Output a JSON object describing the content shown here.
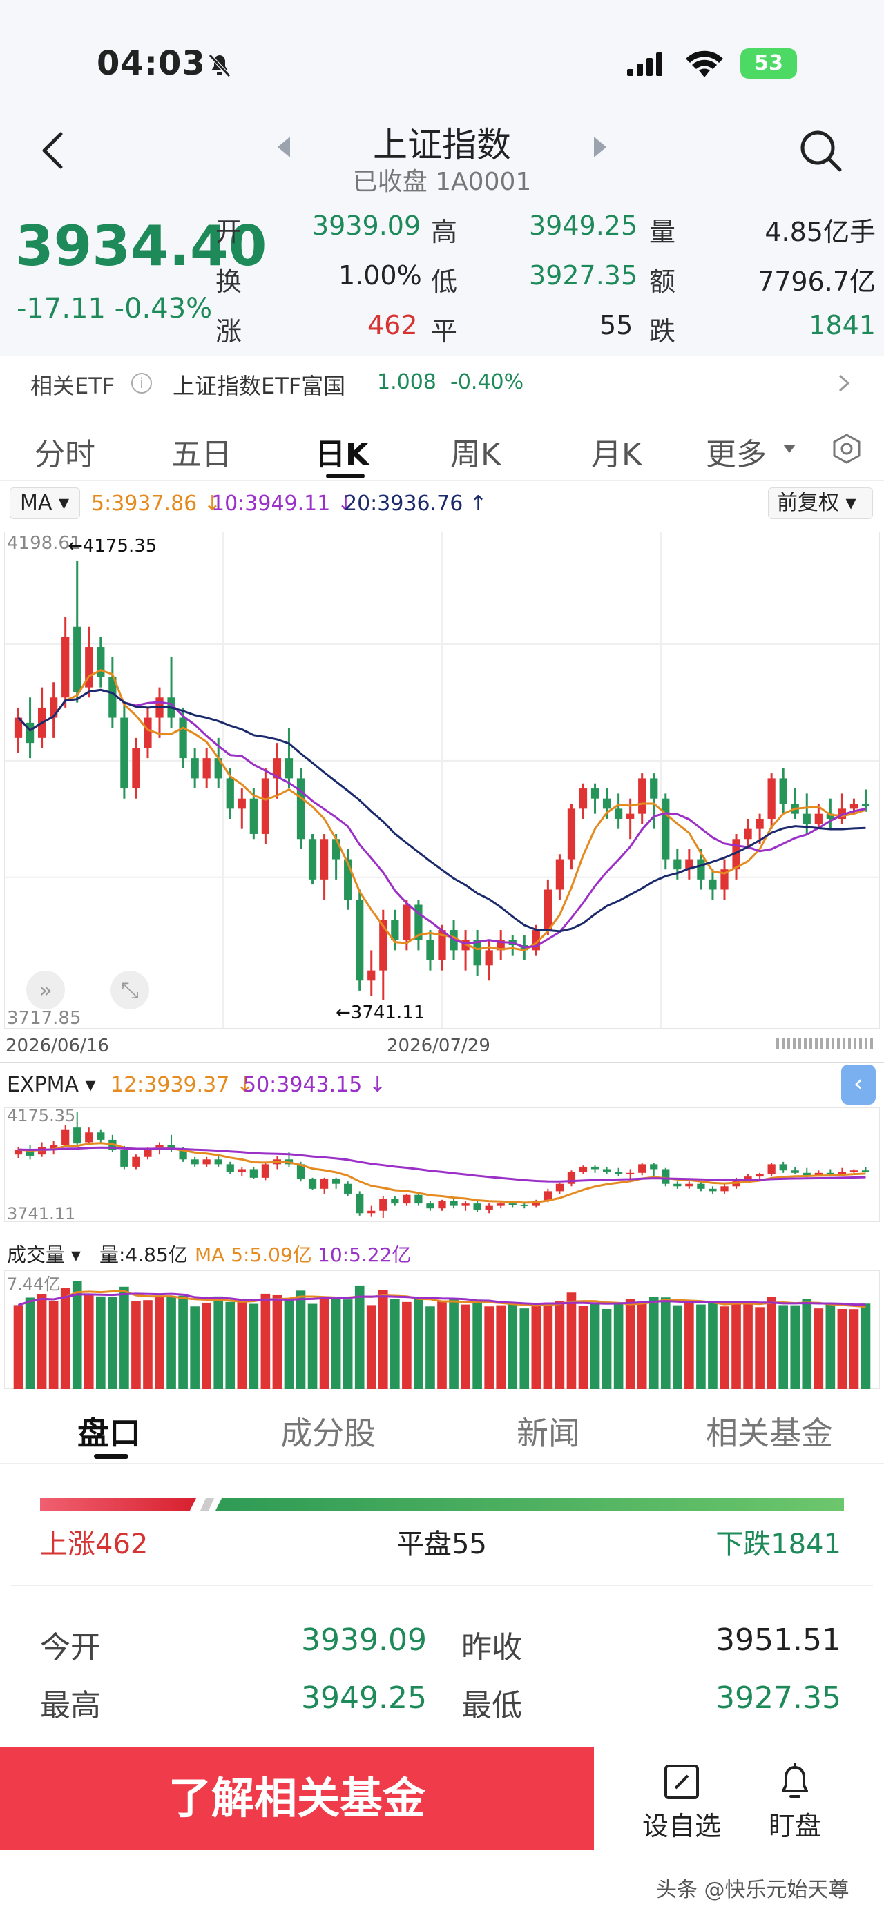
{
  "status_bar": {
    "time": "04:03",
    "battery": "53"
  },
  "header": {
    "title": "上证指数",
    "subtitle": "已收盘 1A0001"
  },
  "quote": {
    "price": "3934.40",
    "change": "-17.11",
    "change_pct": "-0.43%",
    "open_label": "开",
    "open": "3939.09",
    "high_label": "高",
    "high": "3949.25",
    "volume_label": "量",
    "volume": "4.85亿手",
    "turnover_label": "换",
    "turnover": "1.00%",
    "low_label": "低",
    "low": "3927.35",
    "amount_label": "额",
    "amount": "7796.7亿",
    "up_label": "涨",
    "up": "462",
    "flat_label": "平",
    "flat": "55",
    "down_label": "跌",
    "down": "1841"
  },
  "etf": {
    "label": "相关ETF",
    "name": "上证指数ETF富国",
    "price": "1.008",
    "pct": "-0.40%"
  },
  "tabs": [
    "分时",
    "五日",
    "日K",
    "周K",
    "月K",
    "更多"
  ],
  "ma": {
    "selector": "MA",
    "ma5": "5:3937.86",
    "ma10": "10:3949.11",
    "ma20": "20:3936.76",
    "adjust": "前复权"
  },
  "kchart": {
    "top_label": "4198.61",
    "high_mark": "4175.35",
    "low_mark": "3741.11",
    "bottom_label": "3717.85",
    "date_start": "2026/06/16",
    "date_mid": "2026/07/29"
  },
  "expma": {
    "selector": "EXPMA",
    "e12": "12:3939.37",
    "e50": "50:3943.15",
    "top_label": "4175.35",
    "bottom_label": "3741.11"
  },
  "vol": {
    "selector": "成交量",
    "volume": "量:4.85亿",
    "ma5": "MA 5:5.09亿",
    "ma10": "10:5.22亿",
    "top_label": "7.44亿"
  },
  "bottom_tabs": [
    "盘口",
    "成分股",
    "新闻",
    "相关基金"
  ],
  "breadth": {
    "up": "上涨462",
    "flat": "平盘55",
    "down": "下跌1841"
  },
  "stats": [
    {
      "label": "今开",
      "value": "3939.09",
      "label2": "昨收",
      "value2": "3951.51"
    },
    {
      "label": "最高",
      "value": "3949.25",
      "label2": "最低",
      "value2": "3927.35"
    }
  ],
  "cta": "了解相关基金",
  "actions": {
    "watchlist": "设自选",
    "monitor": "盯盘"
  },
  "watermark": "头条 @快乐元始天尊",
  "chart_data": {
    "type": "candlestick",
    "x_start": "2026/06/16",
    "x_mid": "2026/07/29",
    "ylim": [
      3717.85,
      4198.61
    ],
    "high_annotation": 4175.35,
    "low_annotation": 3741.11,
    "candles": [
      [
        4000,
        4020,
        3985,
        4030
      ],
      [
        4015,
        3995,
        3980,
        4040
      ],
      [
        4000,
        4030,
        3990,
        4050
      ],
      [
        4020,
        4040,
        4000,
        4055
      ],
      [
        4040,
        4100,
        4030,
        4120
      ],
      [
        4110,
        4045,
        4035,
        4175
      ],
      [
        4050,
        4090,
        4040,
        4110
      ],
      [
        4090,
        4060,
        4050,
        4100
      ],
      [
        4060,
        4020,
        4010,
        4080
      ],
      [
        4020,
        3950,
        3940,
        4035
      ],
      [
        3950,
        3990,
        3940,
        4000
      ],
      [
        3990,
        4020,
        3980,
        4030
      ],
      [
        4020,
        4040,
        4000,
        4050
      ],
      [
        4040,
        4020,
        4010,
        4080
      ],
      [
        4020,
        3980,
        3970,
        4030
      ],
      [
        3980,
        3960,
        3950,
        3990
      ],
      [
        3960,
        3980,
        3950,
        3990
      ],
      [
        3980,
        3960,
        3950,
        4000
      ],
      [
        3960,
        3930,
        3920,
        3970
      ],
      [
        3930,
        3940,
        3910,
        3950
      ],
      [
        3940,
        3905,
        3900,
        3950
      ],
      [
        3905,
        3960,
        3895,
        3970
      ],
      [
        3960,
        3980,
        3940,
        3995
      ],
      [
        3980,
        3960,
        3950,
        4010
      ],
      [
        3960,
        3900,
        3890,
        3970
      ],
      [
        3900,
        3860,
        3855,
        3905
      ],
      [
        3860,
        3900,
        3840,
        3905
      ],
      [
        3900,
        3880,
        3860,
        3905
      ],
      [
        3880,
        3840,
        3830,
        3890
      ],
      [
        3840,
        3760,
        3750,
        3850
      ],
      [
        3760,
        3770,
        3745,
        3790
      ],
      [
        3770,
        3820,
        3741,
        3830
      ],
      [
        3820,
        3800,
        3790,
        3830
      ],
      [
        3800,
        3835,
        3790,
        3840
      ],
      [
        3835,
        3800,
        3790,
        3840
      ],
      [
        3800,
        3780,
        3770,
        3810
      ],
      [
        3780,
        3810,
        3770,
        3815
      ],
      [
        3810,
        3790,
        3780,
        3820
      ],
      [
        3790,
        3800,
        3770,
        3810
      ],
      [
        3800,
        3775,
        3765,
        3810
      ],
      [
        3775,
        3790,
        3760,
        3800
      ],
      [
        3790,
        3800,
        3780,
        3810
      ],
      [
        3800,
        3795,
        3785,
        3805
      ],
      [
        3795,
        3790,
        3780,
        3805
      ],
      [
        3790,
        3810,
        3785,
        3815
      ],
      [
        3810,
        3850,
        3805,
        3860
      ],
      [
        3850,
        3880,
        3840,
        3885
      ],
      [
        3880,
        3930,
        3870,
        3935
      ],
      [
        3930,
        3950,
        3920,
        3955
      ],
      [
        3950,
        3940,
        3925,
        3955
      ],
      [
        3940,
        3930,
        3920,
        3950
      ],
      [
        3930,
        3920,
        3910,
        3945
      ],
      [
        3920,
        3925,
        3900,
        3940
      ],
      [
        3925,
        3960,
        3915,
        3965
      ],
      [
        3960,
        3940,
        3910,
        3965
      ],
      [
        3940,
        3880,
        3870,
        3945
      ],
      [
        3880,
        3870,
        3860,
        3890
      ],
      [
        3870,
        3880,
        3860,
        3890
      ],
      [
        3880,
        3860,
        3850,
        3890
      ],
      [
        3860,
        3850,
        3840,
        3870
      ],
      [
        3850,
        3870,
        3840,
        3880
      ],
      [
        3870,
        3900,
        3860,
        3905
      ],
      [
        3900,
        3910,
        3890,
        3920
      ],
      [
        3910,
        3920,
        3895,
        3925
      ],
      [
        3920,
        3960,
        3910,
        3965
      ],
      [
        3960,
        3935,
        3925,
        3970
      ],
      [
        3935,
        3925,
        3920,
        3950
      ],
      [
        3925,
        3915,
        3905,
        3945
      ],
      [
        3915,
        3925,
        3910,
        3935
      ],
      [
        3925,
        3920,
        3910,
        3940
      ],
      [
        3920,
        3930,
        3915,
        3945
      ],
      [
        3930,
        3935,
        3925,
        3940
      ],
      [
        3935,
        3934,
        3927,
        3949
      ]
    ]
  }
}
